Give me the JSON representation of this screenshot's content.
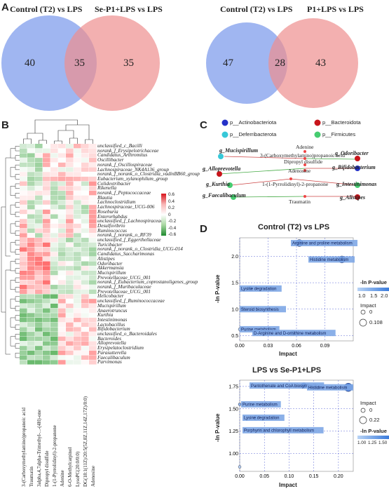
{
  "panels": {
    "A": "A",
    "B": "B",
    "C": "C",
    "D": "D"
  },
  "venn_left": {
    "left_label": "Control (T2) vs LPS",
    "right_label": "Se-P1+LPS vs LPS",
    "left_only": "40",
    "both": "35",
    "right_only": "35"
  },
  "venn_right": {
    "left_label": "Control (T2) vs LPS",
    "right_label": "P1+LPS vs LPS",
    "left_only": "47",
    "both": "28",
    "right_only": "43"
  },
  "heatmap": {
    "taxa": [
      "unclassified_c_Bacilli",
      "norank_f_Erysipelotrichaceae",
      "Candidatus_Arthromitus",
      "Oscillibacter",
      "norank_f_Oscillospiraceae",
      "Lachnospiraceae_NK4A136_group",
      "norank_f_norank_o_Clostridia_vadinBB60_group",
      "Eubacterium_xylanophilum_group",
      "Colidextribacter",
      "Rikenella",
      "norank_f_Peptococcaceae",
      "Blautia",
      "Lachnoclostridium",
      "Lachnospiraceae_UCG-006",
      "Roseburia",
      "Enterorhabdus",
      "unclassified_f_Lachnospiraceae",
      "Desulfovibrio",
      "Ruminococcus",
      "norank_f_norank_o_RF39",
      "unclassified_f_Eggerthellaceae",
      "Turicibacter",
      "norank_f_norank_o_Clostridia_UCG-014",
      "Candidatus_Saccharimonas",
      "Alistipes",
      "Odoribacter",
      "Akkermansia",
      "Mucispirillum",
      "Prevotellaceae_UCG_001",
      "norank_f_Eubacterium_coprostanoligenes_group",
      "norank_f_Muribaculaceae",
      "Prevotellaceae_UCG_001",
      "Helicobacter",
      "unclassified_f_Ruminococcaceae",
      "Mucispirillum",
      "Anaerotruncus",
      "Kurthia",
      "Intestinimonas",
      "Lactobacillus",
      "Bifidobacterium",
      "unclassified_o_Bacteroidales",
      "Bacteroides",
      "Alloprevotella",
      "Erysipelatoclostridium",
      "Parasutterella",
      "Faecalibaculum",
      "Parvimonas"
    ],
    "metabolites": [
      "3-(Carboxymethylamino)propanoic acid",
      "Traumatin",
      "3alpha,4,7alpha-Trimethyl-...-(4H)-one",
      "Dipropyl disulfide",
      "1-(1-Pyrrolidinyl)-2-propanone",
      "Adenine",
      "6-O-Methylcarpinol",
      "LysoPC(20:0/0:0)",
      "DG(18:1(11Z)/20:5(5Z,8Z,11Z,14Z,17Z)/0:0)",
      "Adenosine"
    ],
    "legend_ticks": [
      "0.6",
      "0.4",
      "0.2",
      "0",
      "-0.2",
      "-0.4",
      "-0.6"
    ]
  },
  "network": {
    "legend": [
      "p__Actinobacteriota",
      "p__Bacteroidota",
      "p__Deferribacterota",
      "p__Firmicutes"
    ],
    "legend_colors": {
      "Actinobacteriota": "#2431c8",
      "Bacteroidota": "#c8151b",
      "Deferribacterota": "#37c8d8",
      "Firmicutes": "#46cc70"
    },
    "genera": [
      "g_Mucispirillum",
      "g_Odoribacter",
      "g_Alloprevotella",
      "g_Bifidobacterium",
      "g_Kurthia",
      "g_Intestinimonas",
      "g_Faecalibaculum",
      "g_Alistipes"
    ],
    "metabolites": [
      "Adenine",
      "3-(Carboxymethylamino)propanoic acid",
      "Dipropyl disulfide",
      "Adenosine",
      "1-(1-Pyrrolidinyl)-2-propanone",
      "Traumatin"
    ]
  },
  "bubble1": {
    "title": "Control (T2) vs LPS",
    "xlabel": "Impact",
    "ylabel": "-ln P-value",
    "xticks": [
      "0.00",
      "0.03",
      "0.06",
      "0.09"
    ],
    "yticks": [
      "0.5",
      "1.0",
      "1.5",
      "2.0"
    ],
    "pathways": [
      "Arginine and proline metabolism",
      "Histidine metabolism",
      "Lysine degradation",
      "Steroid biosynthesis",
      "Purine metabolism",
      "D-Arginine and D-ornithine metabolism"
    ],
    "legend_title": "-ln P-value",
    "legend_ticks": [
      "1.0",
      "1.5",
      "2.0"
    ],
    "impact_title": "Impact",
    "impact_values": [
      "0",
      "0.108"
    ]
  },
  "bubble2": {
    "title": "LPS vs Se-P1+LPS",
    "xlabel": "Impact",
    "ylabel": "-ln P-value",
    "xticks": [
      "0.00",
      "0.05",
      "0.10",
      "0.15",
      "0.20"
    ],
    "yticks": [
      "1.00",
      "1.25",
      "1.50",
      "1.75"
    ],
    "pathways": [
      "Pantothenate and CoA biosynthesis",
      "Histidine metabolism",
      "Purine metabolism",
      "Lysine degradation",
      "Porphyrin and chlorophyll metabolism"
    ],
    "impact_title": "Impact",
    "impact_values": [
      "0",
      "0.22"
    ],
    "legend_title": "-ln P-value",
    "legend_ticks": [
      "1.00",
      "1.25",
      "1.50"
    ]
  }
}
